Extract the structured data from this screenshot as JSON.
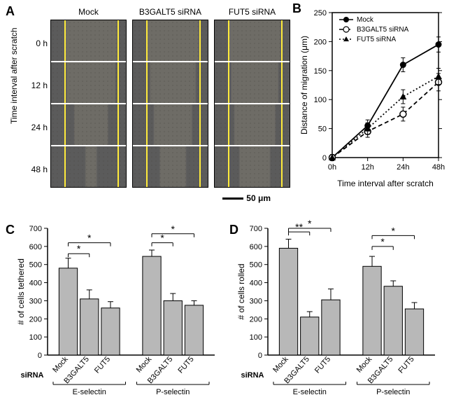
{
  "panelA": {
    "label": "A",
    "col_headers": [
      "Mock",
      "B3GALT5 siRNA",
      "FUT5 siRNA"
    ],
    "row_labels": [
      "0 h",
      "12 h",
      "24 h",
      "48 h"
    ],
    "y_axis_label": "Time interval after scratch",
    "scale_label": "50 μm",
    "micrograph_bg": "#6b6862",
    "cell_texture": "#5a5750",
    "yellow_line_color": "#ffeb3b",
    "line_positions": {
      "mock": [
        [
          18,
          89
        ],
        [
          20,
          87
        ],
        [
          30,
          77
        ],
        [
          45,
          62
        ],
        [
          55,
          55
        ]
      ],
      "b3galt5": [
        [
          18,
          89
        ],
        [
          22,
          85
        ],
        [
          27,
          80
        ],
        [
          35,
          72
        ],
        [
          48,
          60
        ]
      ],
      "fut5": [
        [
          18,
          89
        ],
        [
          21,
          86
        ],
        [
          25,
          82
        ],
        [
          32,
          75
        ],
        [
          42,
          65
        ]
      ]
    },
    "guide_positions": [
      18,
      89
    ]
  },
  "panelB": {
    "label": "B",
    "type": "line",
    "x_title": "Time interval after scratch",
    "y_title": "Distance of migration (μm)",
    "x_ticks": [
      "0h",
      "12h",
      "24h",
      "48h"
    ],
    "y_ticks": [
      0,
      50,
      100,
      150,
      200,
      250
    ],
    "ylim": [
      0,
      250
    ],
    "series": [
      {
        "name": "Mock",
        "marker": "circle-filled",
        "dash": "solid",
        "values": [
          0,
          55,
          160,
          195
        ],
        "err": [
          5,
          10,
          12,
          13
        ]
      },
      {
        "name": "B3GALT5 siRNA",
        "marker": "circle-open",
        "dash": "dashed",
        "values": [
          0,
          45,
          75,
          130
        ],
        "err": [
          5,
          10,
          12,
          15
        ]
      },
      {
        "name": "FUT5 siRNA",
        "marker": "triangle-filled",
        "dash": "dotted",
        "values": [
          0,
          50,
          105,
          140
        ],
        "err": [
          5,
          10,
          12,
          14
        ]
      }
    ],
    "colors": {
      "line": "#000000",
      "bg": "#ffffff"
    },
    "label_fontsize": 12,
    "tick_fontsize": 11
  },
  "panelC": {
    "label": "C",
    "type": "bar",
    "y_title": "# of cells tethered",
    "y_ticks": [
      0,
      100,
      200,
      300,
      400,
      500,
      600,
      700
    ],
    "ylim": [
      0,
      700
    ],
    "groups": [
      "E-selectin",
      "P-selectin"
    ],
    "bar_labels": [
      "Mock",
      "B3GALT5",
      "FUT5"
    ],
    "sirna_label": "siRNA",
    "data": [
      {
        "group": "E-selectin",
        "bars": [
          {
            "v": 480,
            "e": 55
          },
          {
            "v": 310,
            "e": 50
          },
          {
            "v": 260,
            "e": 35
          }
        ]
      },
      {
        "group": "P-selectin",
        "bars": [
          {
            "v": 545,
            "e": 35
          },
          {
            "v": 300,
            "e": 40
          },
          {
            "v": 275,
            "e": 25
          }
        ]
      }
    ],
    "sig": [
      {
        "from": 0,
        "to": 1,
        "y": 560,
        "label": "*"
      },
      {
        "from": 0,
        "to": 2,
        "y": 620,
        "label": "*"
      },
      {
        "from": 3,
        "to": 4,
        "y": 620,
        "label": "*"
      },
      {
        "from": 3,
        "to": 5,
        "y": 670,
        "label": "*"
      }
    ],
    "bar_color": "#b8b8b8",
    "bar_border": "#000000"
  },
  "panelD": {
    "label": "D",
    "type": "bar",
    "y_title": "# of cells rolled",
    "y_ticks": [
      0,
      100,
      200,
      300,
      400,
      500,
      600,
      700
    ],
    "ylim": [
      0,
      700
    ],
    "groups": [
      "E-selectin",
      "P-selectin"
    ],
    "bar_labels": [
      "Mock",
      "B3GALT5",
      "FUT5"
    ],
    "sirna_label": "siRNA",
    "data": [
      {
        "group": "E-selectin",
        "bars": [
          {
            "v": 590,
            "e": 50
          },
          {
            "v": 210,
            "e": 30
          },
          {
            "v": 305,
            "e": 60
          }
        ]
      },
      {
        "group": "P-selectin",
        "bars": [
          {
            "v": 490,
            "e": 55
          },
          {
            "v": 380,
            "e": 30
          },
          {
            "v": 255,
            "e": 35
          }
        ]
      }
    ],
    "sig": [
      {
        "from": 0,
        "to": 1,
        "y": 680,
        "label": "**"
      },
      {
        "from": 0,
        "to": 2,
        "y": 740,
        "label": "*",
        "yoverride": 700
      },
      {
        "from": 3,
        "to": 4,
        "y": 600,
        "label": "*"
      },
      {
        "from": 3,
        "to": 5,
        "y": 660,
        "label": "*"
      }
    ],
    "bar_color": "#b8b8b8",
    "bar_border": "#000000"
  }
}
